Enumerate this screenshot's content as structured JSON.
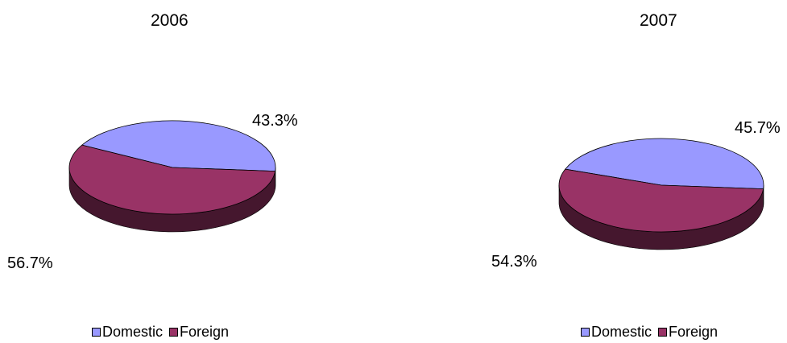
{
  "colors": {
    "domestic": "#9999ff",
    "foreign": "#993366"
  },
  "legend": {
    "items": [
      "Domestic",
      "Foreign"
    ]
  },
  "chart_data": [
    {
      "type": "pie",
      "title": "2006",
      "slices": [
        {
          "label": "Domestic",
          "value": 43.3,
          "display": "43.3%"
        },
        {
          "label": "Foreign",
          "value": 56.7,
          "display": "56.7%"
        }
      ],
      "legend": [
        "Domestic",
        "Foreign"
      ],
      "legend_position": "bottom",
      "style": "3d"
    },
    {
      "type": "pie",
      "title": "2007",
      "slices": [
        {
          "label": "Domestic",
          "value": 45.7,
          "display": "45.7%"
        },
        {
          "label": "Foreign",
          "value": 54.3,
          "display": "54.3%"
        }
      ],
      "legend": [
        "Domestic",
        "Foreign"
      ],
      "legend_position": "bottom",
      "style": "3d"
    }
  ]
}
